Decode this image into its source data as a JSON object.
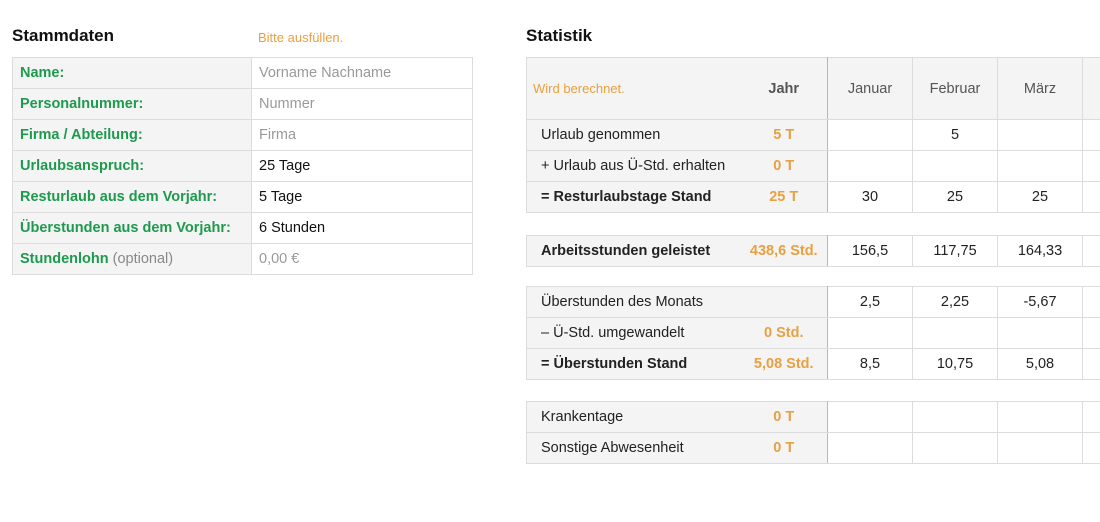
{
  "stammdaten": {
    "title": "Stammdaten",
    "hint": "Bitte ausfüllen.",
    "rows": [
      {
        "label": "Name:",
        "value": "Vorname Nachname",
        "placeholder": true
      },
      {
        "label": "Personalnummer:",
        "value": "Nummer",
        "placeholder": true
      },
      {
        "label": "Firma / Abteilung:",
        "value": "Firma",
        "placeholder": true
      },
      {
        "label": "Urlaubsanspruch:",
        "value": "25 Tage",
        "placeholder": false
      },
      {
        "label": "Resturlaub aus dem Vorjahr:",
        "value": "5 Tage",
        "placeholder": false
      },
      {
        "label": "Überstunden aus dem Vorjahr:",
        "value": "6 Stunden",
        "placeholder": false
      },
      {
        "label": "Stundenlohn",
        "label_suffix": "(optional)",
        "value": "0,00 €",
        "placeholder": true
      }
    ]
  },
  "statistik": {
    "title": "Statistik",
    "header": {
      "hint": "Wird berechnet.",
      "year": "Jahr",
      "months": [
        "Januar",
        "Februar",
        "März",
        ""
      ]
    },
    "groups": [
      {
        "rows": [
          {
            "label": "Urlaub genommen",
            "year": "5 T",
            "bold": false,
            "values": [
              "",
              "5",
              "",
              ""
            ]
          },
          {
            "label": "+ Urlaub aus Ü-Std. erhalten",
            "year": "0 T",
            "bold": false,
            "values": [
              "",
              "",
              "",
              ""
            ]
          },
          {
            "label": "= Resturlaubstage Stand",
            "year": "25 T",
            "bold": true,
            "values": [
              "30",
              "25",
              "25",
              ""
            ]
          }
        ]
      },
      {
        "rows": [
          {
            "label": "Arbeitsstunden geleistet",
            "year": "438,6 Std.",
            "bold": true,
            "values": [
              "156,5",
              "117,75",
              "164,33",
              ""
            ]
          }
        ]
      },
      {
        "rows": [
          {
            "label": "Überstunden des Monats",
            "year": "",
            "bold": false,
            "values": [
              "2,5",
              "2,25",
              "-5,67",
              ""
            ]
          },
          {
            "label": "– Ü-Std. umgewandelt",
            "year": "0 Std.",
            "bold": false,
            "values": [
              "",
              "",
              "",
              ""
            ]
          },
          {
            "label": "= Überstunden Stand",
            "year": "5,08 Std.",
            "bold": true,
            "values": [
              "8,5",
              "10,75",
              "5,08",
              ""
            ]
          }
        ]
      },
      {
        "rows": [
          {
            "label": "Krankentage",
            "year": "0 T",
            "bold": false,
            "values": [
              "",
              "",
              "",
              ""
            ]
          },
          {
            "label": "Sonstige Abwesenheit",
            "year": "0 T",
            "bold": false,
            "values": [
              "",
              "",
              "",
              ""
            ]
          }
        ]
      }
    ]
  },
  "colors": {
    "label_green": "#1e9a4f",
    "accent_orange": "#e8a040"
  }
}
